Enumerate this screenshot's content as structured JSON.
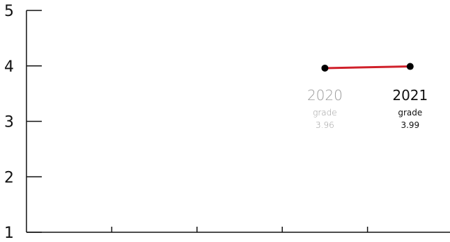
{
  "chart_data": {
    "type": "line",
    "title": "",
    "xlabel": "",
    "ylabel": "",
    "ylim": [
      1,
      5
    ],
    "y_ticks": [
      1,
      2,
      3,
      4,
      5
    ],
    "x_slot_count": 5,
    "grid": false,
    "line_color": "#d0202a",
    "point_color": "#000000",
    "points": [
      {
        "slot": 4,
        "year": "2020",
        "caption": "grade",
        "value": 3.96,
        "value_label": "3.96",
        "label_color": "#999999",
        "emphasis": false
      },
      {
        "slot": 5,
        "year": "2021",
        "caption": "grade",
        "value": 3.99,
        "value_label": "3.99",
        "label_color": "#111111",
        "emphasis": true
      }
    ]
  }
}
